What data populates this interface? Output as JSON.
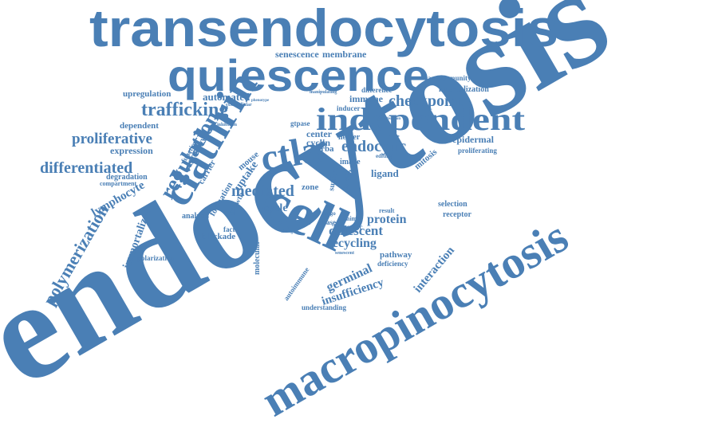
{
  "word_color": "#4a7fb5",
  "words": {
    "endocytosis": "endocytosis",
    "transendocytosis": "transendocytosis",
    "quiescence": "quiescence",
    "macropinocytosis": "macropinocytosis",
    "independent": "independent",
    "clathrin": "clathrin",
    "cell": "cell",
    "ctla": "ctla",
    "trafficking": "trafficking",
    "regulation": "regulation",
    "differentiated": "differentiated",
    "proliferative": "proliferative",
    "polymerization": "polymerization",
    "checkpoint": "checkpoint",
    "endocytic": "endocytic",
    "mediated": "mediated",
    "quiescent": "quiescent",
    "recycling": "recycling",
    "protein": "protein",
    "germinal": "germinal",
    "insufficiency": "insufficiency",
    "interaction": "interaction",
    "lymphocyte": "lymphocyte",
    "immortalized": "immortalized",
    "senescence": "senescence",
    "membrane": "membrane",
    "upregulation": "upregulation",
    "automated": "automated",
    "immune": "immune",
    "autoimmunity": "autoimmunity",
    "internalization": "internalization",
    "difference": "difference",
    "inducer": "inducer",
    "dependent": "dependent",
    "expression": "expression",
    "degradation": "degradation",
    "compartment": "compartment",
    "epidermal": "epidermal",
    "proliferating": "proliferating",
    "selection": "selection",
    "receptor": "receptor",
    "pathway": "pathway",
    "deficiency": "deficiency",
    "autoimmune": "autoimmune",
    "understanding": "understanding",
    "polarization": "polarization",
    "blockade": "blockade",
    "analysis": "analysis",
    "molecular": "molecular",
    "cycle": "cycle",
    "cyclin": "cyclin",
    "center": "center",
    "helper": "helper",
    "uptake": "uptake",
    "mouse": "mouse",
    "carrier": "carrier",
    "formation": "formation",
    "growth": "growth",
    "primary": "primary",
    "function": "function",
    "factor": "factor",
    "image": "image",
    "ligand": "ligand",
    "actin": "actin",
    "mitosis": "mitosis",
    "zone": "zone",
    "gtpase": "gtpase",
    "lrba": "lrba",
    "surface": "surface",
    "phase": "phase",
    "specific": "specific",
    "result": "result",
    "animal": "animal",
    "senescent": "senescent",
    "change": "change",
    "editing": "editing",
    "extracellular": "extracellular",
    "phenotype": "phenotype",
    "inhibition": "inhibition",
    "manipulating": "manipulating",
    "proliferation": "proliferation",
    "target": "target",
    "cargo": "cargo"
  }
}
